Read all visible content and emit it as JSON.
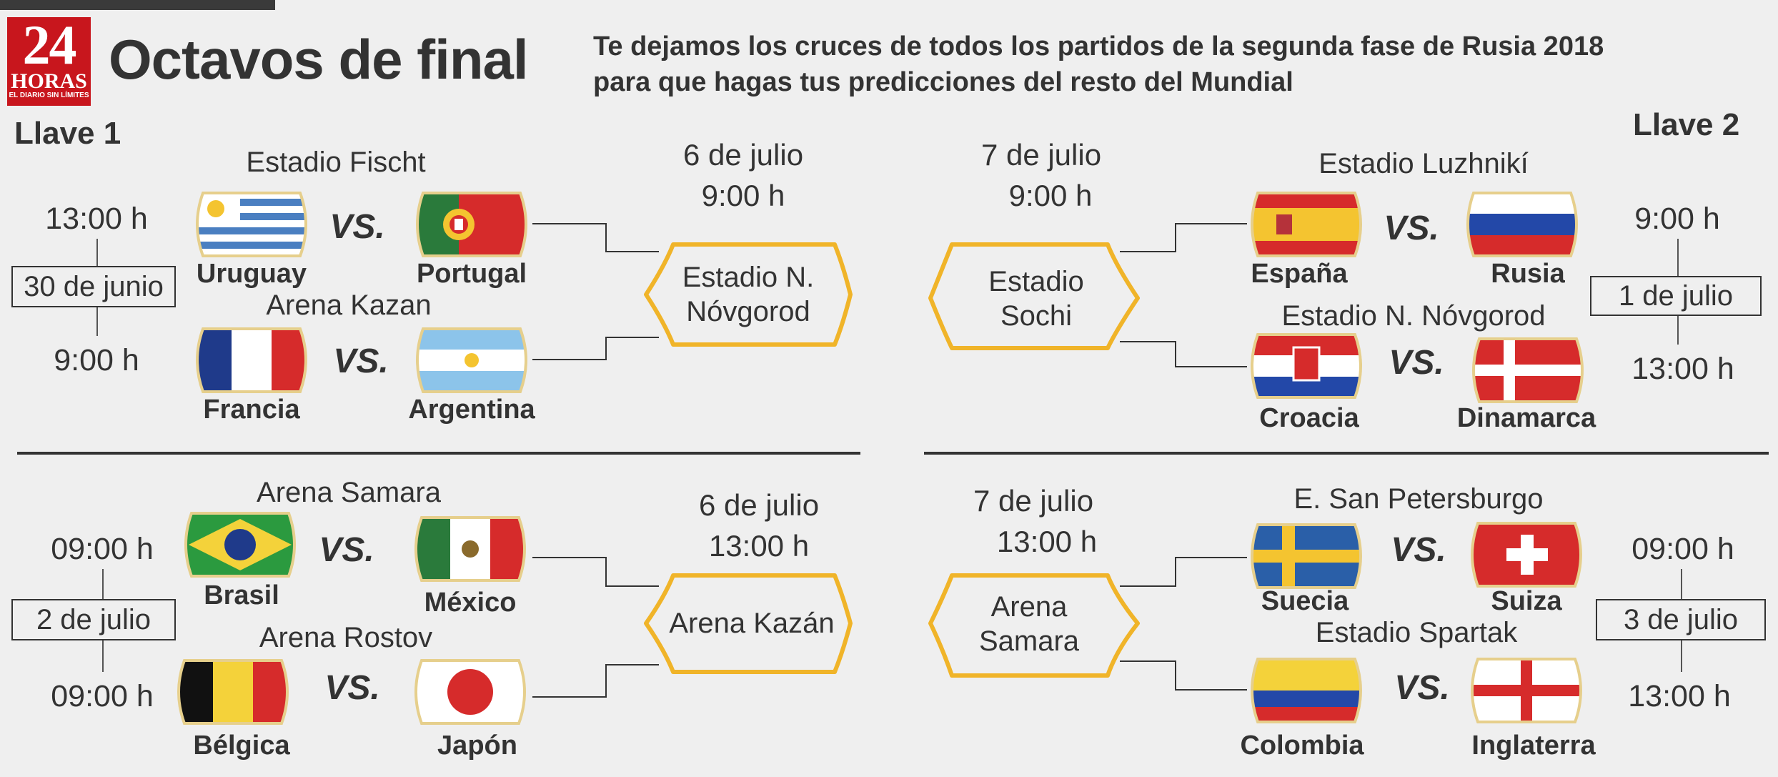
{
  "header": {
    "logo_number": "24",
    "logo_word": "HORAS",
    "logo_tagline": "EL DIARIO SIN LÍMITES",
    "title": "Octavos de final",
    "subtitle_line1": "Te dejamos los cruces de todos los partidos de la segunda fase de Rusia 2018",
    "subtitle_line2": "para que hagas tus predicciones del resto del Mundial"
  },
  "colors": {
    "accent_gold": "#f0b429",
    "text": "#333333",
    "background": "#efefef"
  },
  "llave1": {
    "label": "Llave 1",
    "block1": {
      "date": "30 de junio",
      "match1": {
        "venue": "Estadio Fischt",
        "time": "13:00 h",
        "home": "Uruguay",
        "away": "Portugal",
        "home_flag": "uruguay-flag-icon",
        "away_flag": "portugal-flag-icon"
      },
      "match2": {
        "venue": "Arena Kazan",
        "time": "9:00 h",
        "home": "Francia",
        "away": "Argentina",
        "home_flag": "france-flag-icon",
        "away_flag": "argentina-flag-icon"
      },
      "quarter": {
        "date": "6 de julio",
        "time": "9:00 h",
        "venue_line1": "Estadio N.",
        "venue_line2": "Nóvgorod"
      }
    },
    "block2": {
      "date": "2 de julio",
      "match1": {
        "venue": "Arena Samara",
        "time": "09:00 h",
        "home": "Brasil",
        "away": "México",
        "home_flag": "brazil-flag-icon",
        "away_flag": "mexico-flag-icon"
      },
      "match2": {
        "venue": "Arena Rostov",
        "time": "09:00 h",
        "home": "Bélgica",
        "away": "Japón",
        "home_flag": "belgium-flag-icon",
        "away_flag": "japan-flag-icon"
      },
      "quarter": {
        "date": "6 de julio",
        "time": "13:00 h",
        "venue_line1": "Arena Kazán",
        "venue_line2": ""
      }
    }
  },
  "llave2": {
    "label": "Llave 2",
    "block1": {
      "date": "1 de julio",
      "match1": {
        "venue": "Estadio Luzhnikí",
        "time": "9:00 h",
        "home": "España",
        "away": "Rusia",
        "home_flag": "spain-flag-icon",
        "away_flag": "russia-flag-icon"
      },
      "match2": {
        "venue": "Estadio N. Nóvgorod",
        "time": "13:00 h",
        "home": "Croacia",
        "away": "Dinamarca",
        "home_flag": "croatia-flag-icon",
        "away_flag": "denmark-flag-icon"
      },
      "quarter": {
        "date": "7 de julio",
        "time": "9:00 h",
        "venue_line1": "Estadio",
        "venue_line2": "Sochi"
      }
    },
    "block2": {
      "date": "3 de julio",
      "match1": {
        "venue": "E. San Petersburgo",
        "time": "09:00 h",
        "home": "Suecia",
        "away": "Suiza",
        "home_flag": "sweden-flag-icon",
        "away_flag": "switzerland-flag-icon"
      },
      "match2": {
        "venue": "Estadio Spartak",
        "time": "13:00 h",
        "home": "Colombia",
        "away": "Inglaterra",
        "home_flag": "colombia-flag-icon",
        "away_flag": "england-flag-icon"
      },
      "quarter": {
        "date": "7 de julio",
        "time": "13:00 h",
        "venue_line1": "Arena",
        "venue_line2": "Samara"
      }
    }
  },
  "vs_label": "VS."
}
